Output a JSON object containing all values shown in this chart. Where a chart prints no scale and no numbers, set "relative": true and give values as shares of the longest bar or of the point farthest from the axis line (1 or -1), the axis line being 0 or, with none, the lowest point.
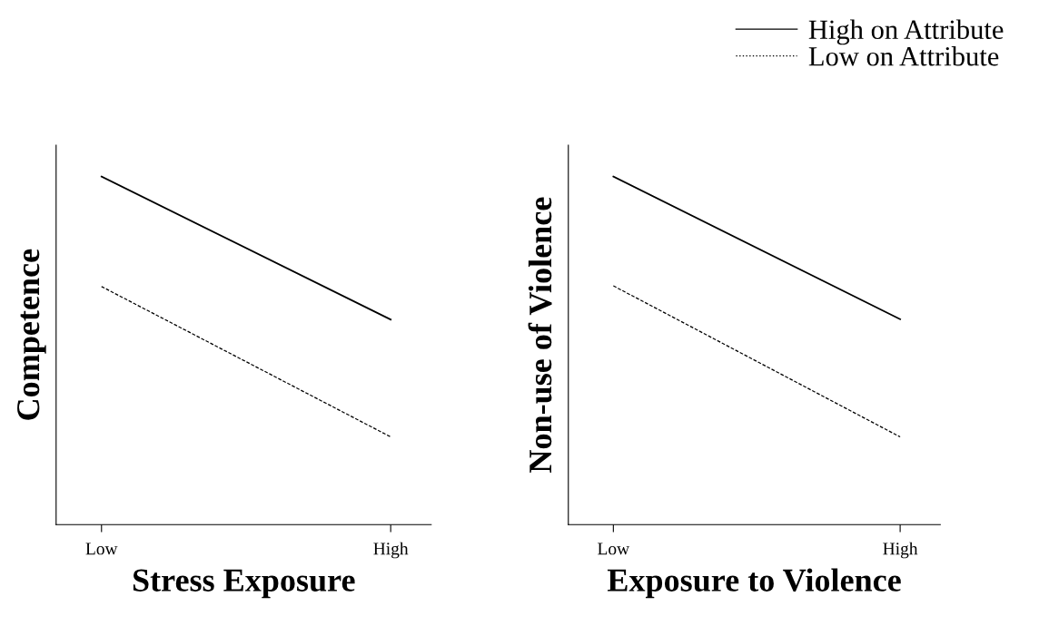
{
  "chart_data": [
    {
      "type": "line",
      "relative": true,
      "xlabel": "Stress Exposure",
      "ylabel": "Competence",
      "categories": [
        "Low",
        "High"
      ],
      "grid": false,
      "series": [
        {
          "color": "#000000",
          "line_style": "solid",
          "values": [
            1,
            0.589
          ]
        },
        {
          "color": "#000000",
          "line_style": "dashed",
          "values": [
            0.684,
            0.252
          ]
        }
      ]
    },
    {
      "type": "line",
      "relative": true,
      "xlabel": "Exposure to Violence",
      "ylabel": "Non-use of Violence",
      "categories": [
        "Low",
        "High"
      ],
      "grid": false,
      "legend": "top right",
      "series": [
        {
          "name": "High on Attribute",
          "color": "#000000",
          "line_style": "solid",
          "values": [
            1,
            0.59
          ]
        },
        {
          "name": "Low on Attribute",
          "color": "#000000",
          "line_style": "dashed",
          "values": [
            0.686,
            0.252
          ]
        }
      ]
    }
  ]
}
